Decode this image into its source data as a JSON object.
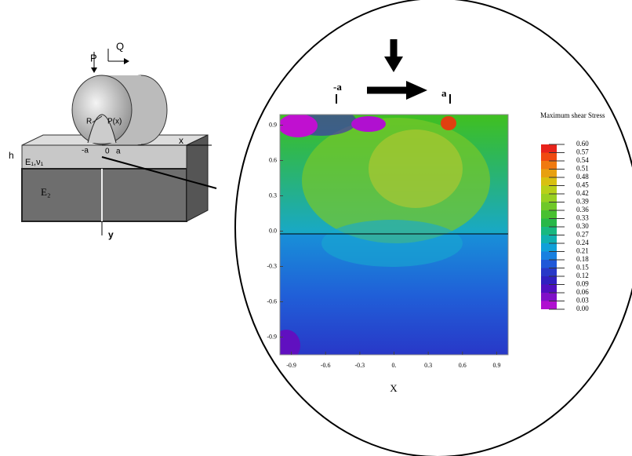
{
  "schematic": {
    "load_p": "P",
    "load_q": "Q",
    "radius": "R",
    "pressure": "P(x)",
    "x_axis": "x",
    "y_axis": "y",
    "minus_a": "-a",
    "origin": "0",
    "plus_a": "a",
    "thickness": "h",
    "layer": "E₁,ν₁",
    "substrate": "E₂"
  },
  "contour": {
    "x_label": "X",
    "marker_left": "-a",
    "marker_right": "a",
    "xlim": [
      -1.0,
      1.0
    ],
    "ylim": [
      -1.05,
      0.99
    ],
    "xticks": [
      {
        "value": -0.9,
        "label": "-0.9"
      },
      {
        "value": -0.6,
        "label": "-0.6"
      },
      {
        "value": -0.3,
        "label": "-0.3"
      },
      {
        "value": 0,
        "label": "0."
      },
      {
        "value": 0.3,
        "label": "0.3"
      },
      {
        "value": 0.6,
        "label": "0.6"
      },
      {
        "value": 0.9,
        "label": "0.9"
      }
    ],
    "yticks": [
      {
        "value": 0.9,
        "label": "0.9"
      },
      {
        "value": 0.6,
        "label": "0.6"
      },
      {
        "value": 0.3,
        "label": "0.3"
      },
      {
        "value": 0,
        "label": "0.0"
      },
      {
        "value": -0.3,
        "label": "-0.3"
      },
      {
        "value": -0.6,
        "label": "-0.6"
      },
      {
        "value": -0.9,
        "label": "-0.9"
      }
    ],
    "colorbar_title": "Maximum shear Stress",
    "colorbar": [
      {
        "value": 0.6,
        "label": "0.60"
      },
      {
        "value": 0.57,
        "label": "0.57"
      },
      {
        "value": 0.54,
        "label": "0.54"
      },
      {
        "value": 0.51,
        "label": "0.51"
      },
      {
        "value": 0.48,
        "label": "0.48"
      },
      {
        "value": 0.45,
        "label": "0.45"
      },
      {
        "value": 0.42,
        "label": "0.42"
      },
      {
        "value": 0.39,
        "label": "0.39"
      },
      {
        "value": 0.36,
        "label": "0.36"
      },
      {
        "value": 0.33,
        "label": "0.33"
      },
      {
        "value": 0.3,
        "label": "0.30"
      },
      {
        "value": 0.27,
        "label": "0.27"
      },
      {
        "value": 0.24,
        "label": "0.24"
      },
      {
        "value": 0.21,
        "label": "0.21"
      },
      {
        "value": 0.18,
        "label": "0.18"
      },
      {
        "value": 0.15,
        "label": "0.15"
      },
      {
        "value": 0.12,
        "label": "0.12"
      },
      {
        "value": 0.09,
        "label": "0.09"
      },
      {
        "value": 0.06,
        "label": "0.06"
      },
      {
        "value": 0.03,
        "label": "0.03"
      },
      {
        "value": 0,
        "label": "0.00"
      }
    ],
    "colors": [
      "#e8231b",
      "#f04a10",
      "#f07a10",
      "#e8a010",
      "#d8c010",
      "#b8d018",
      "#98d020",
      "#70c828",
      "#48c030",
      "#28b848",
      "#18b880",
      "#10b0b0",
      "#10a0d8",
      "#1880e0",
      "#2058d8",
      "#2838c8",
      "#3020c0",
      "#5010c0",
      "#8010c8",
      "#b010d0",
      "#e010e0"
    ]
  }
}
